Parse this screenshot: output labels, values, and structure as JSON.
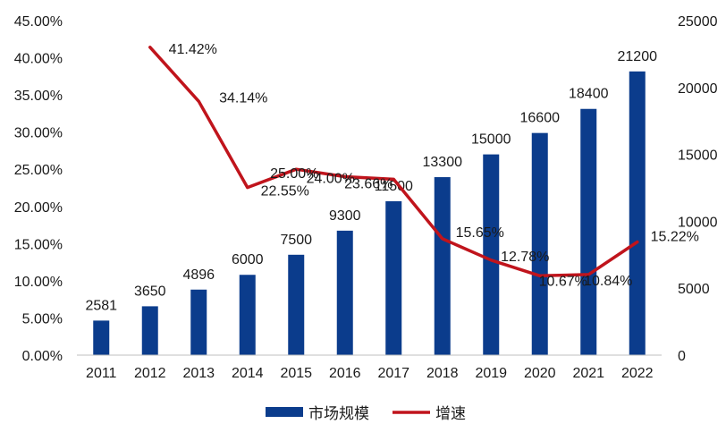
{
  "chart_data": {
    "type": "bar+line",
    "categories": [
      "2011",
      "2012",
      "2013",
      "2014",
      "2015",
      "2016",
      "2017",
      "2018",
      "2019",
      "2020",
      "2021",
      "2022"
    ],
    "series": [
      {
        "name": "市场规模",
        "kind": "bar",
        "axis": "right",
        "color": "#0b3c8c",
        "values": [
          2581,
          3650,
          4896,
          6000,
          7500,
          9300,
          11500,
          13300,
          15000,
          16600,
          18400,
          21200
        ],
        "labels": [
          "2581",
          "3650",
          "4896",
          "6000",
          "7500",
          "9300",
          "11500",
          "13300",
          "15000",
          "16600",
          "18400",
          "21200"
        ]
      },
      {
        "name": "增速",
        "kind": "line",
        "axis": "left",
        "color": "#c0141c",
        "values": [
          null,
          41.42,
          34.14,
          22.55,
          25.0,
          24.0,
          23.66,
          15.65,
          12.78,
          10.67,
          10.84,
          15.22
        ],
        "labels": [
          "",
          "41.42%",
          "34.14%",
          "22.55%",
          "25.00%",
          "24.00%",
          "23.66%",
          "15.65%",
          "12.78%",
          "10.67%",
          "10.84%",
          "15.22%"
        ]
      }
    ],
    "left_axis": {
      "ylim": [
        0,
        45
      ],
      "ticks": [
        "0.00%",
        "5.00%",
        "10.00%",
        "15.00%",
        "20.00%",
        "25.00%",
        "30.00%",
        "35.00%",
        "40.00%",
        "45.00%"
      ]
    },
    "right_axis": {
      "ylim": [
        0,
        25000
      ],
      "ticks": [
        "0",
        "5000",
        "10000",
        "15000",
        "20000",
        "25000"
      ]
    },
    "grid": false,
    "legend": {
      "position": "bottom",
      "items": [
        {
          "label": "市场规模",
          "color": "#0b3c8c",
          "shape": "bar"
        },
        {
          "label": "增速",
          "color": "#c0141c",
          "shape": "line"
        }
      ]
    }
  }
}
